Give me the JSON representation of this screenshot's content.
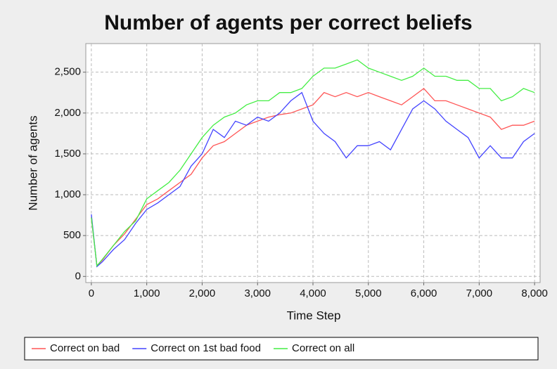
{
  "chart_data": {
    "type": "line",
    "title": "Number of agents per correct beliefs",
    "x_label": "Time Step",
    "y_label": "Number of agents",
    "x": [
      0,
      100,
      200,
      400,
      600,
      800,
      1000,
      1200,
      1400,
      1600,
      1800,
      2000,
      2200,
      2400,
      2600,
      2800,
      3000,
      3200,
      3400,
      3600,
      3800,
      4000,
      4200,
      4400,
      4600,
      4800,
      5000,
      5200,
      5400,
      5600,
      5800,
      6000,
      6200,
      6400,
      6600,
      6800,
      7000,
      7200,
      7400,
      7600,
      7800,
      8000
    ],
    "series": [
      {
        "name": "Correct on bad",
        "color": "#ff5555",
        "values": [
          720,
          130,
          200,
          380,
          520,
          700,
          880,
          950,
          1050,
          1150,
          1250,
          1450,
          1600,
          1650,
          1750,
          1850,
          1900,
          1950,
          1980,
          2000,
          2050,
          2100,
          2250,
          2200,
          2250,
          2200,
          2250,
          2200,
          2150,
          2100,
          2200,
          2300,
          2150,
          2150,
          2100,
          2050,
          2000,
          1950,
          1800,
          1850,
          1850,
          1900
        ]
      },
      {
        "name": "Correct on 1st bad food",
        "color": "#4444ff",
        "values": [
          760,
          120,
          180,
          330,
          450,
          650,
          820,
          900,
          1000,
          1100,
          1350,
          1500,
          1800,
          1700,
          1900,
          1850,
          1950,
          1900,
          2000,
          2150,
          2250,
          1900,
          1750,
          1650,
          1450,
          1600,
          1600,
          1650,
          1550,
          1800,
          2050,
          2150,
          2050,
          1900,
          1800,
          1700,
          1450,
          1600,
          1450,
          1450,
          1650,
          1750
        ]
      },
      {
        "name": "Correct on all",
        "color": "#44ee44",
        "values": [
          720,
          130,
          210,
          380,
          550,
          680,
          950,
          1050,
          1150,
          1300,
          1500,
          1700,
          1850,
          1950,
          2000,
          2100,
          2150,
          2150,
          2250,
          2250,
          2300,
          2450,
          2550,
          2550,
          2600,
          2650,
          2550,
          2500,
          2450,
          2400,
          2450,
          2550,
          2450,
          2450,
          2400,
          2400,
          2300,
          2300,
          2150,
          2200,
          2300,
          2250
        ]
      }
    ],
    "xlim": [
      -100,
      8100
    ],
    "ylim": [
      -75,
      2850
    ],
    "xticks": [
      0,
      {
        "value": 1000,
        "label": "1,000"
      },
      {
        "value": 2000,
        "label": "2,000"
      },
      {
        "value": 3000,
        "label": "3,000"
      },
      {
        "value": 4000,
        "label": "4,000"
      },
      {
        "value": 5000,
        "label": "5,000"
      },
      {
        "value": 6000,
        "label": "6,000"
      },
      {
        "value": 7000,
        "label": "7,000"
      },
      {
        "value": 8000,
        "label": "8,000"
      }
    ],
    "yticks": [
      0,
      500,
      {
        "value": 1000,
        "label": "1,000"
      },
      {
        "value": 1500,
        "label": "1,500"
      },
      {
        "value": 2000,
        "label": "2,000"
      },
      {
        "value": 2500,
        "label": "2,500"
      }
    ],
    "grid": true,
    "legend": "bottom"
  }
}
